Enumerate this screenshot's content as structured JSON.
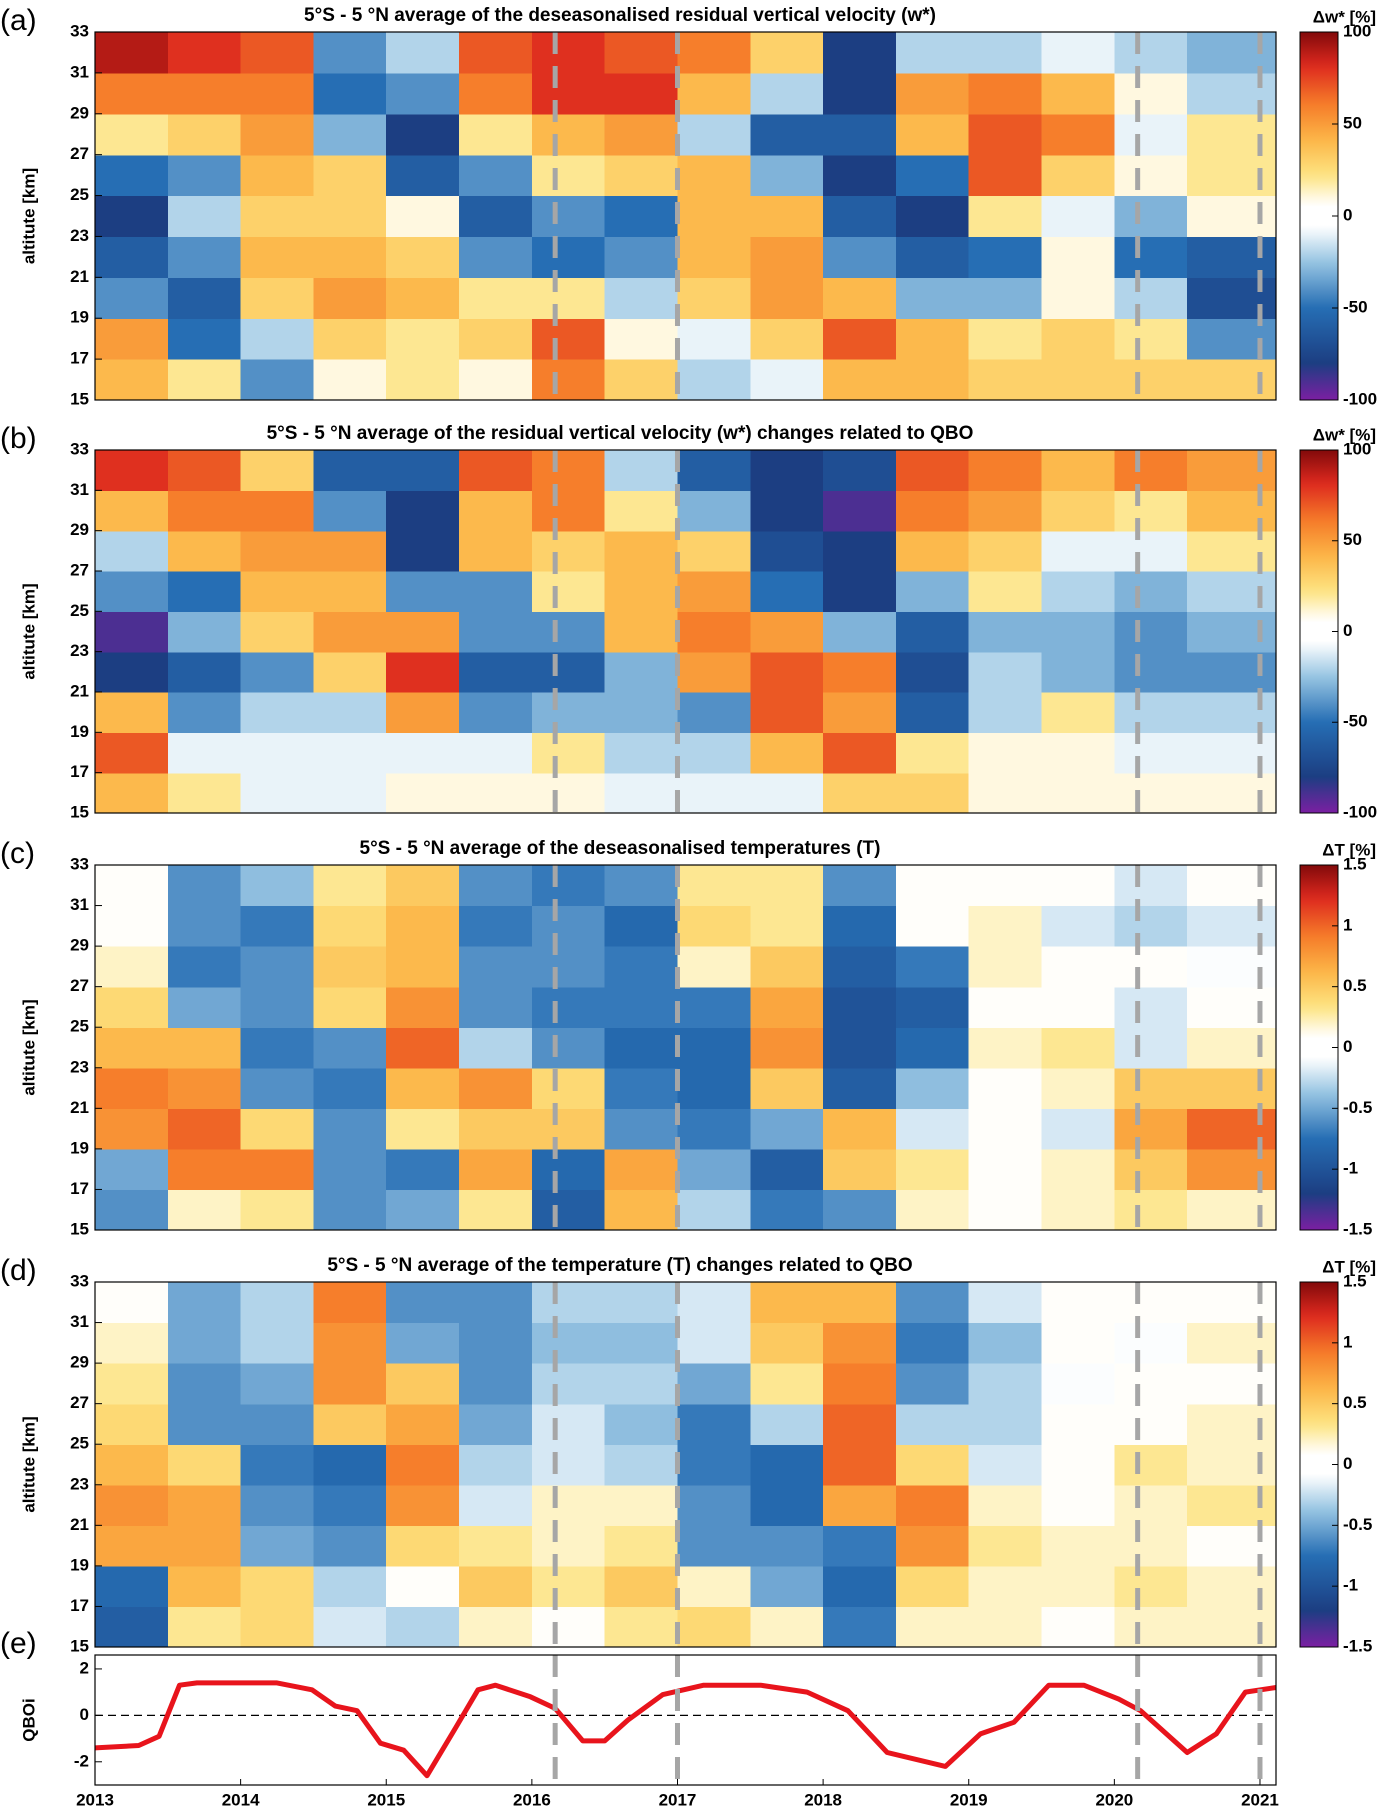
{
  "chart_data": [
    {
      "type": "heatmap",
      "panel_label": "(a)",
      "title": "5°S - 5 °N average of the deseasonalised residual vertical velocity (w*)",
      "y_label": "altitute [km]",
      "colorbar_label": "Δw* [%]",
      "xlim": [
        2013,
        2021.11
      ],
      "ylim": [
        15,
        33
      ],
      "yticks": [
        15,
        17,
        19,
        21,
        23,
        25,
        27,
        29,
        31,
        33
      ],
      "zlim": [
        -100,
        100
      ],
      "colorbar_ticks": [
        100,
        50,
        0,
        -50,
        -100
      ],
      "vlines": [
        2016.16,
        2017.0,
        2020.16,
        2021.0
      ],
      "x_edges": [
        2013,
        2013.5,
        2014,
        2014.5,
        2015,
        2015.5,
        2016,
        2016.5,
        2017,
        2017.5,
        2018,
        2018.5,
        2019,
        2019.5,
        2020,
        2020.5,
        2021.11
      ],
      "y_edges": [
        15,
        17,
        19,
        21,
        23,
        25,
        27,
        29,
        31,
        33
      ],
      "z": [
        [
          40,
          50,
          -40,
          -60,
          -80,
          -50,
          20,
          60,
          90
        ],
        [
          20,
          -50,
          -60,
          -40,
          -20,
          -40,
          30,
          60,
          80
        ],
        [
          -40,
          -20,
          30,
          40,
          30,
          40,
          50,
          60,
          70
        ],
        [
          10,
          30,
          50,
          40,
          30,
          30,
          -30,
          -50,
          -40
        ],
        [
          20,
          20,
          40,
          30,
          10,
          -60,
          -80,
          -40,
          -20
        ],
        [
          10,
          30,
          20,
          -40,
          -60,
          -40,
          20,
          60,
          70
        ],
        [
          60,
          70,
          20,
          -50,
          -40,
          20,
          40,
          80,
          80
        ],
        [
          30,
          10,
          -20,
          -40,
          -50,
          30,
          50,
          80,
          70
        ],
        [
          -20,
          -10,
          30,
          40,
          40,
          40,
          -20,
          40,
          60
        ],
        [
          -10,
          30,
          50,
          50,
          40,
          -30,
          -60,
          -20,
          30
        ],
        [
          40,
          70,
          40,
          -40,
          -60,
          -80,
          -60,
          -80,
          -80
        ],
        [
          40,
          40,
          -30,
          -60,
          -80,
          -50,
          40,
          50,
          -20
        ],
        [
          30,
          20,
          -30,
          -50,
          20,
          70,
          70,
          60,
          -20
        ],
        [
          30,
          30,
          10,
          10,
          -10,
          30,
          60,
          40,
          -10
        ],
        [
          30,
          20,
          -20,
          -50,
          -30,
          10,
          -10,
          10,
          -20
        ],
        [
          30,
          -40,
          -70,
          -60,
          10,
          20,
          20,
          -20,
          -30
        ]
      ]
    },
    {
      "type": "heatmap",
      "panel_label": "(b)",
      "title": "5°S - 5 °N average of the residual vertical velocity (w*) changes related to QBO",
      "y_label": "altitute [km]",
      "colorbar_label": "Δw* [%]",
      "xlim": [
        2013,
        2021.11
      ],
      "ylim": [
        15,
        33
      ],
      "yticks": [
        15,
        17,
        19,
        21,
        23,
        25,
        27,
        29,
        31,
        33
      ],
      "zlim": [
        -100,
        100
      ],
      "colorbar_ticks": [
        100,
        50,
        0,
        -50,
        -100
      ],
      "vlines": [
        2016.16,
        2017.0,
        2020.16,
        2021.0
      ],
      "x_edges": [
        2013,
        2013.5,
        2014,
        2014.5,
        2015,
        2015.5,
        2016,
        2016.5,
        2017,
        2017.5,
        2018,
        2018.5,
        2019,
        2019.5,
        2020,
        2020.5,
        2021.11
      ],
      "y_edges": [
        15,
        17,
        19,
        21,
        23,
        25,
        27,
        29,
        31,
        33
      ],
      "z": [
        [
          40,
          70,
          40,
          -80,
          -90,
          -40,
          -20,
          40,
          80
        ],
        [
          20,
          -10,
          -40,
          -60,
          -30,
          -50,
          40,
          60,
          70
        ],
        [
          -10,
          -10,
          -20,
          -40,
          30,
          40,
          50,
          60,
          30
        ],
        [
          -10,
          -10,
          -20,
          30,
          50,
          40,
          50,
          -40,
          -60
        ],
        [
          10,
          -10,
          50,
          80,
          50,
          -40,
          -80,
          -80,
          -60
        ],
        [
          10,
          -10,
          -40,
          -60,
          -40,
          -40,
          40,
          40,
          70
        ],
        [
          10,
          20,
          -30,
          -60,
          -40,
          20,
          30,
          60,
          60
        ],
        [
          -10,
          -20,
          -30,
          -30,
          40,
          40,
          40,
          20,
          -20
        ],
        [
          -10,
          -20,
          -40,
          50,
          60,
          50,
          30,
          -30,
          -60
        ],
        [
          -10,
          40,
          70,
          70,
          50,
          -50,
          -70,
          -80,
          -80
        ],
        [
          30,
          70,
          50,
          60,
          -30,
          -80,
          -80,
          -90,
          -70
        ],
        [
          30,
          20,
          -60,
          -70,
          -60,
          -30,
          40,
          60,
          70
        ],
        [
          10,
          10,
          -20,
          -20,
          -30,
          20,
          30,
          50,
          60
        ],
        [
          10,
          10,
          20,
          -30,
          -30,
          -20,
          -10,
          30,
          40
        ],
        [
          10,
          -10,
          -20,
          -40,
          -40,
          -30,
          -10,
          20,
          60
        ],
        [
          10,
          -10,
          -20,
          -40,
          -30,
          -20,
          20,
          40,
          50
        ]
      ]
    },
    {
      "type": "heatmap",
      "panel_label": "(c)",
      "title": "5°S - 5 °N average of the deseasonalised temperatures (T)",
      "y_label": "altitute [km]",
      "colorbar_label": "ΔT [%]",
      "xlim": [
        2013,
        2021.11
      ],
      "ylim": [
        15,
        33
      ],
      "yticks": [
        15,
        17,
        19,
        21,
        23,
        25,
        27,
        29,
        31,
        33
      ],
      "zlim": [
        -1.5,
        1.5
      ],
      "colorbar_ticks": [
        1.5,
        1,
        0.5,
        0,
        -0.5,
        -1,
        -1.5
      ],
      "vlines": [
        2016.16,
        2017.0,
        2020.16,
        2021.0
      ],
      "x_edges": [
        2013,
        2013.5,
        2014,
        2014.5,
        2015,
        2015.5,
        2016,
        2016.5,
        2017,
        2017.5,
        2018,
        2018.5,
        2019,
        2019.5,
        2020,
        2020.5,
        2021.11
      ],
      "y_edges": [
        15,
        17,
        19,
        21,
        23,
        25,
        27,
        29,
        31,
        33
      ],
      "z": [
        [
          -0.6,
          -0.5,
          0.8,
          0.9,
          0.6,
          0.4,
          0.2,
          0.1,
          0.1
        ],
        [
          0.2,
          0.9,
          1.0,
          0.8,
          0.6,
          -0.5,
          -0.7,
          -0.6,
          -0.6
        ],
        [
          0.3,
          0.9,
          0.4,
          -0.6,
          -0.7,
          -0.6,
          -0.6,
          -0.7,
          -0.4
        ],
        [
          -0.6,
          -0.6,
          -0.6,
          -0.7,
          -0.6,
          0.4,
          0.5,
          0.4,
          0.3
        ],
        [
          -0.5,
          -0.7,
          0.3,
          0.6,
          1.0,
          0.8,
          0.6,
          0.6,
          0.5
        ],
        [
          0.3,
          0.7,
          0.5,
          0.8,
          -0.3,
          -0.6,
          -0.6,
          -0.7,
          -0.6
        ],
        [
          -0.9,
          -0.8,
          0.5,
          0.4,
          -0.6,
          -0.7,
          -0.6,
          -0.6,
          -0.7
        ],
        [
          0.6,
          0.7,
          -0.6,
          -0.7,
          -0.8,
          -0.7,
          -0.7,
          -0.8,
          -0.6
        ],
        [
          -0.3,
          -0.5,
          -0.7,
          -0.8,
          -0.8,
          -0.7,
          0.2,
          0.4,
          0.3
        ],
        [
          -0.7,
          -0.9,
          -0.5,
          0.5,
          0.8,
          0.7,
          0.5,
          0.3,
          0.3
        ],
        [
          -0.6,
          0.5,
          0.6,
          -0.9,
          -1.0,
          -1.0,
          -0.9,
          -0.8,
          -0.6
        ],
        [
          0.2,
          0.3,
          -0.2,
          -0.4,
          -0.8,
          -0.9,
          -0.7,
          0.1,
          0.1
        ],
        [
          0.1,
          0.1,
          0.1,
          0.1,
          0.2,
          0.1,
          0.2,
          0.2,
          0.1
        ],
        [
          0.2,
          0.2,
          -0.2,
          0.2,
          0.3,
          0.1,
          0.1,
          -0.2,
          0.1
        ],
        [
          0.3,
          0.5,
          0.7,
          0.5,
          -0.2,
          -0.2,
          0.1,
          -0.3,
          -0.2
        ],
        [
          0.2,
          0.8,
          1.0,
          0.5,
          0.2,
          0.1,
          -0.1,
          -0.2,
          0.1
        ]
      ]
    },
    {
      "type": "heatmap",
      "panel_label": "(d)",
      "title": "5°S - 5 °N average of the temperature (T) changes related to QBO",
      "y_label": "altitute [km]",
      "colorbar_label": "ΔT [%]",
      "xlim": [
        2013,
        2021.11
      ],
      "ylim": [
        15,
        33
      ],
      "yticks": [
        15,
        17,
        19,
        21,
        23,
        25,
        27,
        29,
        31,
        33
      ],
      "zlim": [
        -1.5,
        1.5
      ],
      "colorbar_ticks": [
        1.5,
        1,
        0.5,
        0,
        -0.5,
        -1,
        -1.5
      ],
      "vlines": [
        2016.16,
        2017.0,
        2020.16,
        2021.0
      ],
      "x_edges": [
        2013,
        2013.5,
        2014,
        2014.5,
        2015,
        2015.5,
        2016,
        2016.5,
        2017,
        2017.5,
        2018,
        2018.5,
        2019,
        2019.5,
        2020,
        2020.5,
        2021.11
      ],
      "y_edges": [
        15,
        17,
        19,
        21,
        23,
        25,
        27,
        29,
        31,
        33
      ],
      "z": [
        [
          -0.9,
          -0.8,
          0.7,
          0.8,
          0.6,
          0.4,
          0.3,
          0.2,
          0.1
        ],
        [
          0.3,
          0.6,
          0.7,
          0.7,
          0.4,
          -0.6,
          -0.6,
          -0.5,
          -0.5
        ],
        [
          0.4,
          0.4,
          -0.5,
          -0.6,
          -0.7,
          -0.6,
          -0.5,
          -0.3,
          -0.3
        ],
        [
          -0.2,
          -0.3,
          -0.6,
          -0.7,
          -0.8,
          0.5,
          0.8,
          0.8,
          0.9
        ],
        [
          -0.3,
          0.1,
          0.4,
          0.8,
          0.9,
          0.7,
          0.5,
          -0.5,
          -0.6
        ],
        [
          0.2,
          0.5,
          0.3,
          -0.2,
          -0.3,
          -0.5,
          -0.6,
          -0.6,
          -0.6
        ],
        [
          0.1,
          0.3,
          0.2,
          0.2,
          -0.2,
          -0.2,
          -0.3,
          -0.4,
          -0.3
        ],
        [
          0.3,
          0.5,
          0.3,
          0.2,
          -0.3,
          -0.4,
          -0.3,
          -0.4,
          -0.3
        ],
        [
          0.4,
          0.2,
          -0.6,
          -0.6,
          -0.7,
          -0.7,
          -0.5,
          -0.2,
          -0.2
        ],
        [
          0.2,
          -0.5,
          -0.6,
          -0.8,
          -0.8,
          -0.3,
          0.3,
          0.5,
          0.6
        ],
        [
          -0.7,
          -0.8,
          -0.7,
          0.7,
          1.0,
          1.0,
          0.9,
          0.8,
          0.6
        ],
        [
          0.2,
          0.4,
          0.8,
          0.9,
          0.4,
          -0.3,
          -0.6,
          -0.7,
          -0.6
        ],
        [
          0.2,
          0.2,
          0.3,
          0.2,
          -0.2,
          -0.3,
          -0.3,
          -0.4,
          -0.2
        ],
        [
          0.1,
          0.2,
          0.2,
          0.1,
          0.1,
          0.1,
          -0.1,
          0.1,
          0.1
        ],
        [
          0.2,
          0.3,
          0.2,
          0.2,
          0.3,
          0.1,
          0.1,
          -0.1,
          0.1
        ],
        [
          0.2,
          0.2,
          0.1,
          0.3,
          0.2,
          0.2,
          0.1,
          0.2,
          0.1
        ]
      ]
    },
    {
      "type": "line",
      "panel_label": "(e)",
      "y_label": "QBOi",
      "color": "#e8141c",
      "xlim": [
        2013,
        2021.11
      ],
      "ylim": [
        -3,
        2.6
      ],
      "yticks": [
        -2,
        0,
        2
      ],
      "xticks": [
        2013,
        2014,
        2015,
        2016,
        2017,
        2018,
        2019,
        2020,
        2021
      ],
      "hline": 0,
      "vlines": [
        2016.16,
        2017.0,
        2020.16,
        2021.0
      ],
      "x": [
        2013.0,
        2013.3,
        2013.44,
        2013.58,
        2013.7,
        2014.25,
        2014.49,
        2014.65,
        2014.8,
        2014.96,
        2015.12,
        2015.28,
        2015.48,
        2015.63,
        2015.75,
        2015.99,
        2016.16,
        2016.35,
        2016.5,
        2016.66,
        2016.9,
        2017.18,
        2017.57,
        2017.89,
        2018.17,
        2018.44,
        2018.84,
        2019.08,
        2019.31,
        2019.55,
        2019.79,
        2020.03,
        2020.18,
        2020.5,
        2020.7,
        2020.9,
        2021.11
      ],
      "values": [
        -1.4,
        -1.3,
        -0.9,
        1.3,
        1.4,
        1.4,
        1.1,
        0.4,
        0.2,
        -1.2,
        -1.5,
        -2.6,
        -0.5,
        1.1,
        1.3,
        0.8,
        0.3,
        -1.1,
        -1.1,
        -0.2,
        0.9,
        1.3,
        1.3,
        1.0,
        0.2,
        -1.6,
        -2.2,
        -0.8,
        -0.3,
        1.3,
        1.3,
        0.7,
        0.2,
        -1.6,
        -0.8,
        1.0,
        1.2
      ]
    }
  ]
}
